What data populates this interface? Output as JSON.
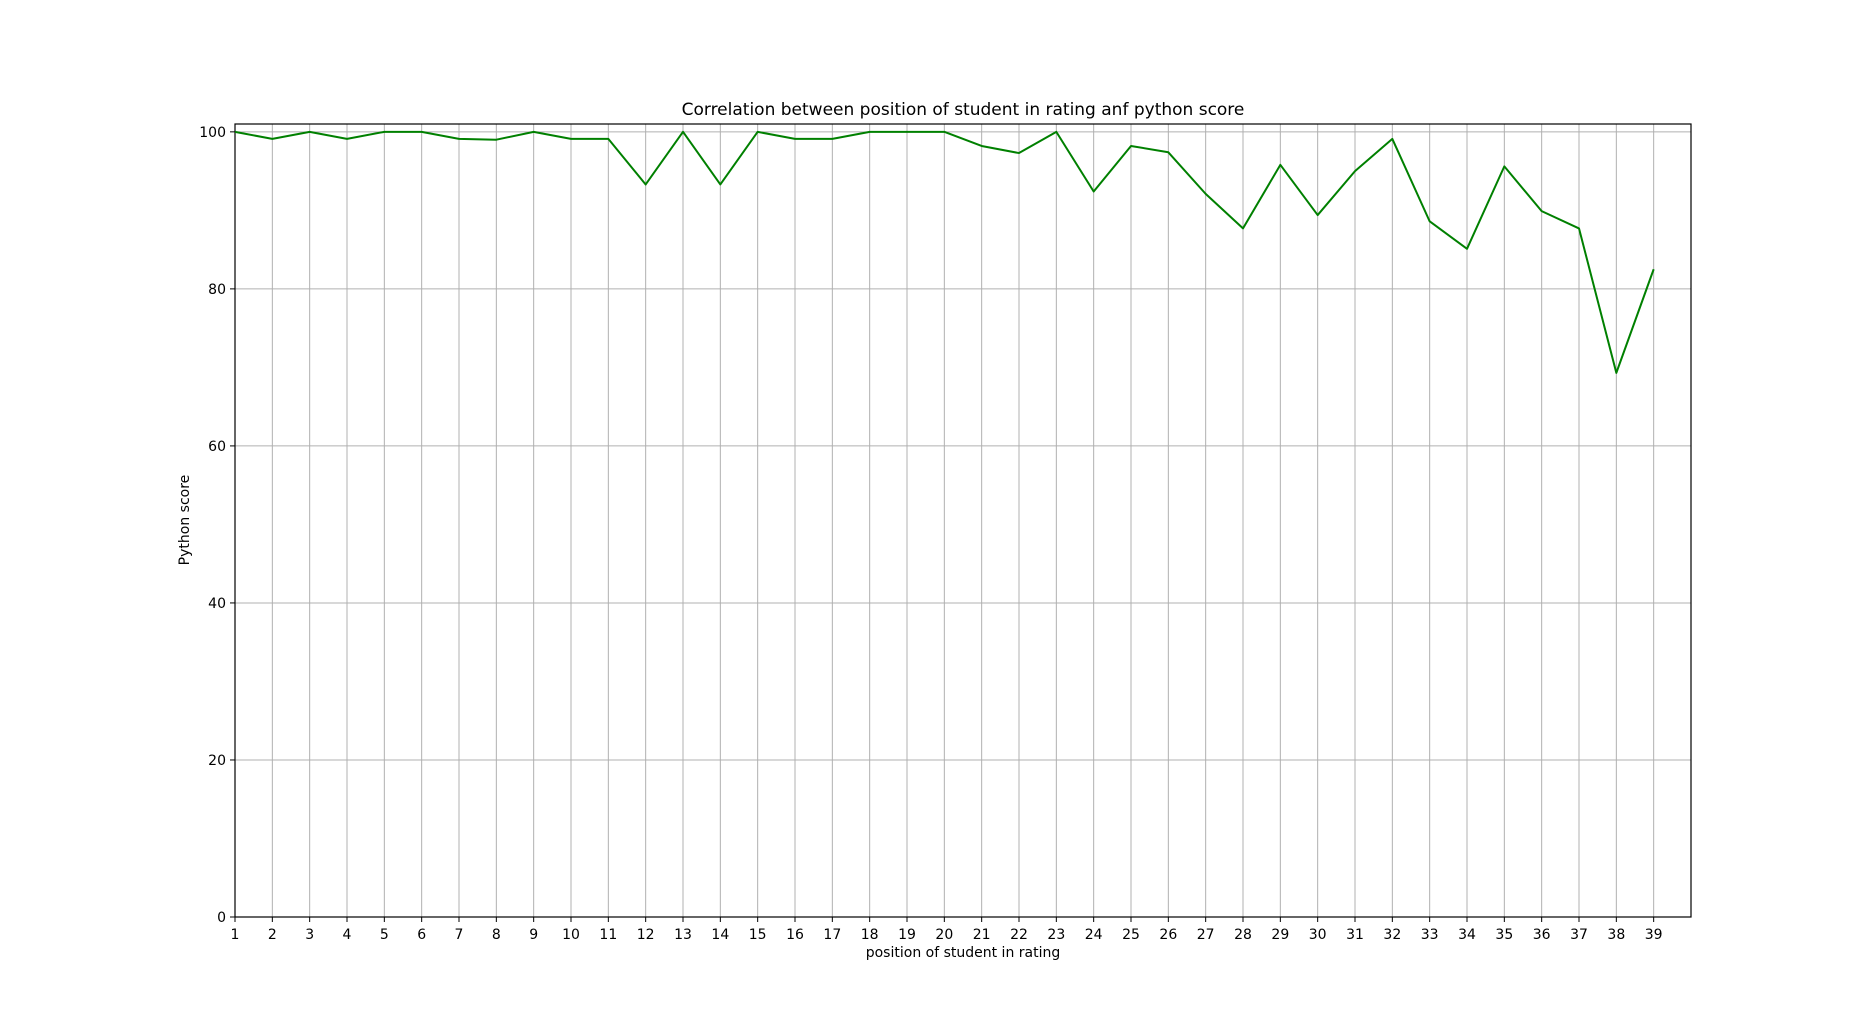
{
  "chart_data": {
    "type": "line",
    "title": "Correlation between position of student in rating anf python score",
    "xlabel": "position of student in rating",
    "ylabel": "Python score",
    "xlim": [
      1,
      40
    ],
    "ylim": [
      0,
      101
    ],
    "x_ticks": [
      "1",
      "2",
      "3",
      "4",
      "5",
      "6",
      "7",
      "8",
      "9",
      "10",
      "11",
      "12",
      "13",
      "14",
      "15",
      "16",
      "17",
      "18",
      "19",
      "20",
      "21",
      "22",
      "23",
      "24",
      "25",
      "26",
      "27",
      "28",
      "29",
      "30",
      "31",
      "32",
      "33",
      "34",
      "35",
      "36",
      "37",
      "38",
      "39"
    ],
    "y_ticks": [
      "0",
      "20",
      "40",
      "60",
      "80",
      "100"
    ],
    "grid": true,
    "x": [
      1,
      2,
      3,
      4,
      5,
      6,
      7,
      8,
      9,
      10,
      11,
      12,
      13,
      14,
      15,
      16,
      17,
      18,
      19,
      20,
      21,
      22,
      23,
      24,
      25,
      26,
      27,
      28,
      29,
      30,
      31,
      32,
      33,
      34,
      35,
      36,
      37,
      38,
      39
    ],
    "series": [
      {
        "color": "#008000",
        "values": [
          100,
          99.1,
          100,
          99.1,
          100,
          100,
          99.1,
          99,
          100,
          99.1,
          99.1,
          93.3,
          100,
          93.3,
          100,
          99.1,
          99.1,
          100,
          100,
          100,
          98.2,
          97.3,
          100,
          92.4,
          98.2,
          97.4,
          92.1,
          87.7,
          95.8,
          89.4,
          95,
          99.1,
          88.6,
          85.1,
          95.6,
          89.9,
          87.7,
          69.3,
          82.5
        ]
      }
    ]
  }
}
